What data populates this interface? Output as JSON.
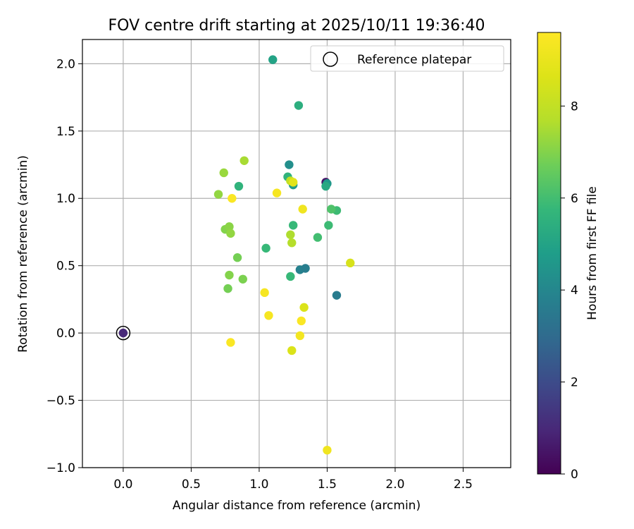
{
  "chart_data": {
    "type": "scatter",
    "title": "FOV centre drift starting at 2025/10/11 19:36:40",
    "xlabel": "Angular distance from reference (arcmin)",
    "ylabel": "Rotation from reference (arcmin)",
    "xlim": [
      -0.3,
      2.85
    ],
    "ylim": [
      -1.0,
      2.18
    ],
    "xticks": [
      0.0,
      0.5,
      1.0,
      1.5,
      2.0,
      2.5
    ],
    "xtick_labels": [
      "0.0",
      "0.5",
      "1.0",
      "1.5",
      "2.0",
      "2.5"
    ],
    "yticks": [
      -1.0,
      -0.5,
      0.0,
      0.5,
      1.0,
      1.5,
      2.0
    ],
    "ytick_labels": [
      "−1.0",
      "−0.5",
      "0.0",
      "0.5",
      "1.0",
      "1.5",
      "2.0"
    ],
    "grid": true,
    "legend": {
      "position": "top-right",
      "entries": [
        "Reference platepar"
      ]
    },
    "reference_point": {
      "x": 0.0,
      "y": 0.0,
      "hours": 1.0
    },
    "colorbar": {
      "label": "Hours from first FF file",
      "range": [
        0,
        9.6
      ],
      "ticks": [
        0,
        2,
        4,
        6,
        8
      ],
      "tick_labels": [
        "0",
        "2",
        "4",
        "6",
        "8"
      ],
      "colormap": "viridis"
    },
    "points": [
      {
        "x": 1.49,
        "y": 1.12,
        "hours": 0.5
      },
      {
        "x": 1.3,
        "y": 0.47,
        "hours": 3.8
      },
      {
        "x": 1.34,
        "y": 0.48,
        "hours": 3.7
      },
      {
        "x": 1.57,
        "y": 0.28,
        "hours": 3.6
      },
      {
        "x": 1.22,
        "y": 1.25,
        "hours": 4.3
      },
      {
        "x": 1.5,
        "y": 1.11,
        "hours": 4.6
      },
      {
        "x": 1.25,
        "y": 1.1,
        "hours": 4.7
      },
      {
        "x": 1.1,
        "y": 2.03,
        "hours": 5.0
      },
      {
        "x": 1.49,
        "y": 1.09,
        "hours": 5.2
      },
      {
        "x": 1.29,
        "y": 1.69,
        "hours": 5.4
      },
      {
        "x": 0.85,
        "y": 1.09,
        "hours": 5.6
      },
      {
        "x": 1.21,
        "y": 1.16,
        "hours": 5.6
      },
      {
        "x": 1.05,
        "y": 0.63,
        "hours": 5.8
      },
      {
        "x": 1.25,
        "y": 0.8,
        "hours": 5.8
      },
      {
        "x": 1.23,
        "y": 0.42,
        "hours": 5.8
      },
      {
        "x": 1.57,
        "y": 0.91,
        "hours": 5.9
      },
      {
        "x": 1.51,
        "y": 0.8,
        "hours": 5.9
      },
      {
        "x": 1.43,
        "y": 0.71,
        "hours": 6.0
      },
      {
        "x": 1.53,
        "y": 0.92,
        "hours": 6.2
      },
      {
        "x": 0.84,
        "y": 0.56,
        "hours": 6.8
      },
      {
        "x": 0.77,
        "y": 0.33,
        "hours": 6.8
      },
      {
        "x": 0.88,
        "y": 0.4,
        "hours": 6.9
      },
      {
        "x": 0.75,
        "y": 0.77,
        "hours": 7.0
      },
      {
        "x": 0.78,
        "y": 0.43,
        "hours": 7.0
      },
      {
        "x": 0.78,
        "y": 0.79,
        "hours": 7.1
      },
      {
        "x": 0.79,
        "y": 0.74,
        "hours": 7.2
      },
      {
        "x": 0.7,
        "y": 1.03,
        "hours": 7.2
      },
      {
        "x": 0.74,
        "y": 1.19,
        "hours": 7.3
      },
      {
        "x": 0.89,
        "y": 1.28,
        "hours": 7.5
      },
      {
        "x": 1.23,
        "y": 0.73,
        "hours": 7.6
      },
      {
        "x": 1.24,
        "y": 0.67,
        "hours": 7.7
      },
      {
        "x": 1.23,
        "y": 1.13,
        "hours": 8.0
      },
      {
        "x": 1.67,
        "y": 0.52,
        "hours": 8.5
      },
      {
        "x": 1.33,
        "y": 0.19,
        "hours": 8.6
      },
      {
        "x": 1.24,
        "y": -0.13,
        "hours": 8.6
      },
      {
        "x": 1.25,
        "y": 1.12,
        "hours": 8.8
      },
      {
        "x": 1.32,
        "y": 0.92,
        "hours": 9.2
      },
      {
        "x": 1.5,
        "y": -0.87,
        "hours": 9.2
      },
      {
        "x": 1.3,
        "y": -0.02,
        "hours": 9.3
      },
      {
        "x": 1.13,
        "y": 1.04,
        "hours": 9.4
      },
      {
        "x": 1.04,
        "y": 0.3,
        "hours": 9.4
      },
      {
        "x": 1.07,
        "y": 0.13,
        "hours": 9.4
      },
      {
        "x": 1.31,
        "y": 0.09,
        "hours": 9.5
      },
      {
        "x": 0.8,
        "y": 1.0,
        "hours": 9.5
      },
      {
        "x": 0.79,
        "y": -0.07,
        "hours": 9.5
      }
    ]
  }
}
